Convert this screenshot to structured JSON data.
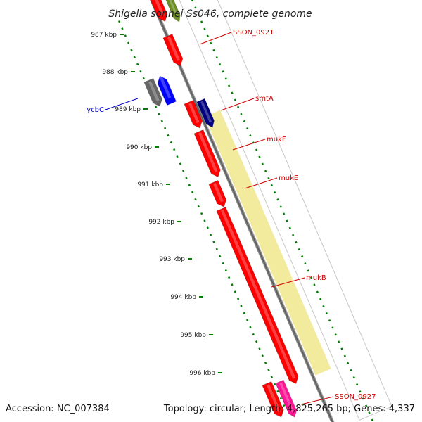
{
  "title": "Shigella sonnei Ss046, complete genome",
  "ruler": {
    "tick_labels": [
      "987 kbp",
      "988 kbp",
      "989 kbp",
      "990 kbp",
      "991 kbp",
      "992 kbp",
      "993 kbp",
      "994 kbp",
      "995 kbp",
      "996 kbp"
    ]
  },
  "genes": [
    {
      "label": "SSON_0921",
      "color": "#cc0000"
    },
    {
      "label": "smtA",
      "color": "#cc0000"
    },
    {
      "label": "ycbC",
      "color": "#0000cc"
    },
    {
      "label": "mukF",
      "color": "#cc0000"
    },
    {
      "label": "mukE",
      "color": "#cc0000"
    },
    {
      "label": "mukB",
      "color": "#cc0000"
    },
    {
      "label": "SSON_0927",
      "color": "#cc0000"
    }
  ],
  "colors": {
    "cds_red": "#ff0000",
    "cds_blue": "#0000ff",
    "cds_grey": "#666666",
    "cds_olive": "#6b8e23",
    "cds_pink": "#ff1493",
    "cds_navy": "#000080",
    "feature_yellow": "#f0e68c",
    "backbone": "#808080",
    "ticks": "#008000"
  },
  "footer": {
    "accession": "Accession: NC_007384",
    "topology": "Topology: circular; Length: 4,825,265 bp; Genes: 4,337"
  }
}
